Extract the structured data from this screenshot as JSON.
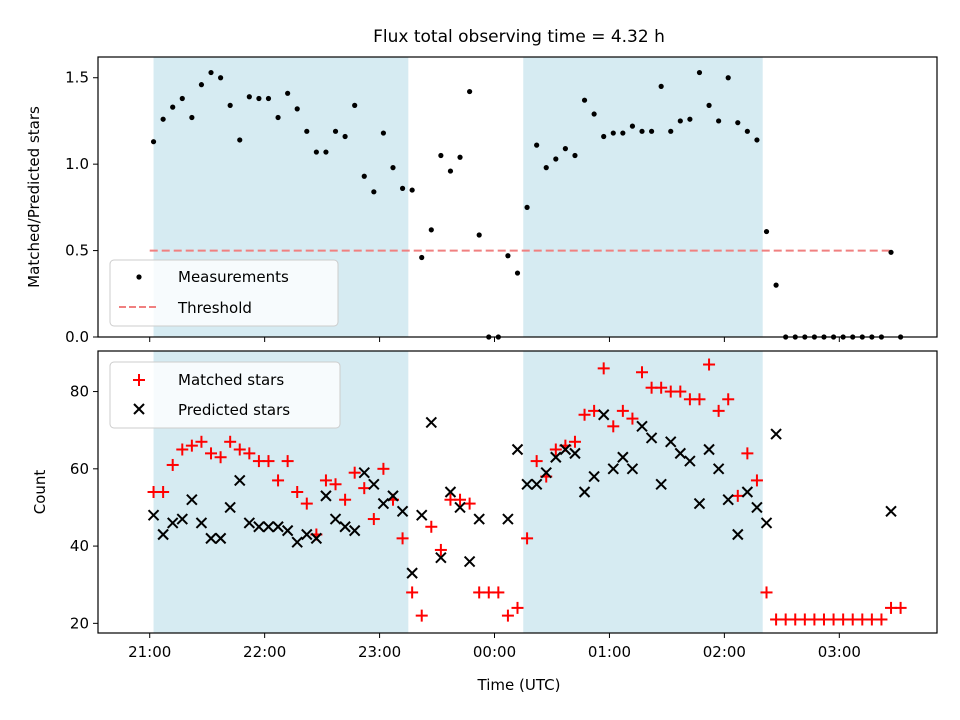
{
  "title": "Flux total observing time = 4.32 h",
  "colors": {
    "band": "#add8e6",
    "measurement": "#000000",
    "threshold": "#f08080",
    "matched": "#ff0000",
    "predicted": "#000000"
  },
  "chart_data": [
    {
      "type": "scatter",
      "panel": "top",
      "ylabel": "Matched/Predicted stars",
      "ylim": [
        0,
        1.62
      ],
      "xlim_hours": [
        20.55,
        27.85
      ],
      "yticks": [
        0.0,
        0.5,
        1.0,
        1.5
      ],
      "ytick_labels": [
        "0.0",
        "0.5",
        "1.0",
        "1.5"
      ],
      "bands": [
        [
          "21:02",
          "23:15"
        ],
        [
          "00:15",
          "02:20"
        ]
      ],
      "legend": {
        "position": "lower-left",
        "entries": [
          "Measurements",
          "Threshold"
        ]
      },
      "threshold": {
        "name": "Threshold",
        "value": 0.5,
        "x_range": [
          "21:00",
          "03:27"
        ],
        "style": "dashed"
      },
      "series": [
        {
          "name": "Measurements",
          "marker": "dot",
          "points": [
            [
              "21:02",
              1.13
            ],
            [
              "21:07",
              1.26
            ],
            [
              "21:12",
              1.33
            ],
            [
              "21:17",
              1.38
            ],
            [
              "21:22",
              1.27
            ],
            [
              "21:27",
              1.46
            ],
            [
              "21:32",
              1.53
            ],
            [
              "21:37",
              1.5
            ],
            [
              "21:42",
              1.34
            ],
            [
              "21:47",
              1.14
            ],
            [
              "21:52",
              1.39
            ],
            [
              "21:57",
              1.38
            ],
            [
              "22:02",
              1.38
            ],
            [
              "22:07",
              1.27
            ],
            [
              "22:12",
              1.41
            ],
            [
              "22:17",
              1.32
            ],
            [
              "22:22",
              1.19
            ],
            [
              "22:27",
              1.07
            ],
            [
              "22:32",
              1.07
            ],
            [
              "22:37",
              1.19
            ],
            [
              "22:42",
              1.16
            ],
            [
              "22:47",
              1.34
            ],
            [
              "22:52",
              0.93
            ],
            [
              "22:57",
              0.84
            ],
            [
              "23:02",
              1.18
            ],
            [
              "23:07",
              0.98
            ],
            [
              "23:12",
              0.86
            ],
            [
              "23:17",
              0.85
            ],
            [
              "23:22",
              0.46
            ],
            [
              "23:27",
              0.62
            ],
            [
              "23:32",
              1.05
            ],
            [
              "23:37",
              0.96
            ],
            [
              "23:42",
              1.04
            ],
            [
              "23:47",
              1.42
            ],
            [
              "23:52",
              0.59
            ],
            [
              "23:57",
              0.0
            ],
            [
              "00:02",
              0.0
            ],
            [
              "00:07",
              0.47
            ],
            [
              "00:12",
              0.37
            ],
            [
              "00:17",
              0.75
            ],
            [
              "00:22",
              1.11
            ],
            [
              "00:27",
              0.98
            ],
            [
              "00:32",
              1.03
            ],
            [
              "00:37",
              1.09
            ],
            [
              "00:42",
              1.05
            ],
            [
              "00:47",
              1.37
            ],
            [
              "00:52",
              1.29
            ],
            [
              "00:57",
              1.16
            ],
            [
              "01:02",
              1.18
            ],
            [
              "01:07",
              1.18
            ],
            [
              "01:12",
              1.22
            ],
            [
              "01:17",
              1.19
            ],
            [
              "01:22",
              1.19
            ],
            [
              "01:27",
              1.45
            ],
            [
              "01:32",
              1.19
            ],
            [
              "01:37",
              1.25
            ],
            [
              "01:42",
              1.26
            ],
            [
              "01:47",
              1.53
            ],
            [
              "01:52",
              1.34
            ],
            [
              "01:57",
              1.25
            ],
            [
              "02:02",
              1.5
            ],
            [
              "02:07",
              1.24
            ],
            [
              "02:12",
              1.19
            ],
            [
              "02:17",
              1.14
            ],
            [
              "02:22",
              0.61
            ],
            [
              "02:27",
              0.3
            ],
            [
              "02:32",
              0.0
            ],
            [
              "02:37",
              0.0
            ],
            [
              "02:42",
              0.0
            ],
            [
              "02:47",
              0.0
            ],
            [
              "02:52",
              0.0
            ],
            [
              "02:57",
              0.0
            ],
            [
              "03:02",
              0.0
            ],
            [
              "03:07",
              0.0
            ],
            [
              "03:12",
              0.0
            ],
            [
              "03:17",
              0.0
            ],
            [
              "03:22",
              0.0
            ],
            [
              "03:27",
              0.49
            ],
            [
              "03:32",
              0.0
            ]
          ]
        }
      ]
    },
    {
      "type": "scatter",
      "panel": "bottom",
      "ylabel": "Count",
      "xlabel": "Time (UTC)",
      "ylim": [
        17.5,
        90.5
      ],
      "xlim_hours": [
        20.55,
        27.85
      ],
      "yticks": [
        20,
        40,
        60,
        80
      ],
      "ytick_labels": [
        "20",
        "40",
        "60",
        "80"
      ],
      "xticks": [
        "21:00",
        "22:00",
        "23:00",
        "00:00",
        "01:00",
        "02:00",
        "03:00"
      ],
      "bands": [
        [
          "21:02",
          "23:15"
        ],
        [
          "00:15",
          "02:20"
        ]
      ],
      "legend": {
        "position": "top-left",
        "entries": [
          "Matched stars",
          "Predicted stars"
        ]
      },
      "series": [
        {
          "name": "Matched stars",
          "marker": "plus",
          "points": [
            [
              "21:02",
              54
            ],
            [
              "21:07",
              54
            ],
            [
              "21:12",
              61
            ],
            [
              "21:17",
              65
            ],
            [
              "21:22",
              66
            ],
            [
              "21:27",
              67
            ],
            [
              "21:32",
              64
            ],
            [
              "21:37",
              63
            ],
            [
              "21:42",
              67
            ],
            [
              "21:47",
              65
            ],
            [
              "21:52",
              64
            ],
            [
              "21:57",
              62
            ],
            [
              "22:02",
              62
            ],
            [
              "22:07",
              57
            ],
            [
              "22:12",
              62
            ],
            [
              "22:17",
              54
            ],
            [
              "22:22",
              51
            ],
            [
              "22:27",
              43
            ],
            [
              "22:32",
              57
            ],
            [
              "22:37",
              56
            ],
            [
              "22:42",
              52
            ],
            [
              "22:47",
              59
            ],
            [
              "22:52",
              55
            ],
            [
              "22:57",
              47
            ],
            [
              "23:02",
              60
            ],
            [
              "23:07",
              52
            ],
            [
              "23:12",
              42
            ],
            [
              "23:17",
              28
            ],
            [
              "23:22",
              22
            ],
            [
              "23:27",
              45
            ],
            [
              "23:32",
              39
            ],
            [
              "23:37",
              52
            ],
            [
              "23:42",
              52
            ],
            [
              "23:47",
              51
            ],
            [
              "23:52",
              28
            ],
            [
              "23:57",
              28
            ],
            [
              "00:02",
              28
            ],
            [
              "00:07",
              22
            ],
            [
              "00:12",
              24
            ],
            [
              "00:17",
              42
            ],
            [
              "00:22",
              62
            ],
            [
              "00:27",
              58
            ],
            [
              "00:32",
              65
            ],
            [
              "00:37",
              66
            ],
            [
              "00:42",
              67
            ],
            [
              "00:47",
              74
            ],
            [
              "00:52",
              75
            ],
            [
              "00:57",
              86
            ],
            [
              "01:02",
              71
            ],
            [
              "01:07",
              75
            ],
            [
              "01:12",
              73
            ],
            [
              "01:17",
              85
            ],
            [
              "01:22",
              81
            ],
            [
              "01:27",
              81
            ],
            [
              "01:32",
              80
            ],
            [
              "01:37",
              80
            ],
            [
              "01:42",
              78
            ],
            [
              "01:47",
              78
            ],
            [
              "01:52",
              87
            ],
            [
              "01:57",
              75
            ],
            [
              "02:02",
              78
            ],
            [
              "02:07",
              53
            ],
            [
              "02:12",
              64
            ],
            [
              "02:17",
              57
            ],
            [
              "02:22",
              28
            ],
            [
              "02:27",
              21
            ],
            [
              "02:32",
              21
            ],
            [
              "02:37",
              21
            ],
            [
              "02:42",
              21
            ],
            [
              "02:47",
              21
            ],
            [
              "02:52",
              21
            ],
            [
              "02:57",
              21
            ],
            [
              "03:02",
              21
            ],
            [
              "03:07",
              21
            ],
            [
              "03:12",
              21
            ],
            [
              "03:17",
              21
            ],
            [
              "03:22",
              21
            ],
            [
              "03:27",
              24
            ],
            [
              "03:32",
              24
            ]
          ]
        },
        {
          "name": "Predicted stars",
          "marker": "x",
          "points": [
            [
              "21:02",
              48
            ],
            [
              "21:07",
              43
            ],
            [
              "21:12",
              46
            ],
            [
              "21:17",
              47
            ],
            [
              "21:22",
              52
            ],
            [
              "21:27",
              46
            ],
            [
              "21:32",
              42
            ],
            [
              "21:37",
              42
            ],
            [
              "21:42",
              50
            ],
            [
              "21:47",
              57
            ],
            [
              "21:52",
              46
            ],
            [
              "21:57",
              45
            ],
            [
              "22:02",
              45
            ],
            [
              "22:07",
              45
            ],
            [
              "22:12",
              44
            ],
            [
              "22:17",
              41
            ],
            [
              "22:22",
              43
            ],
            [
              "22:27",
              42
            ],
            [
              "22:32",
              53
            ],
            [
              "22:37",
              47
            ],
            [
              "22:42",
              45
            ],
            [
              "22:47",
              44
            ],
            [
              "22:52",
              59
            ],
            [
              "22:57",
              56
            ],
            [
              "23:02",
              51
            ],
            [
              "23:07",
              53
            ],
            [
              "23:12",
              49
            ],
            [
              "23:17",
              33
            ],
            [
              "23:22",
              48
            ],
            [
              "23:27",
              72
            ],
            [
              "23:32",
              37
            ],
            [
              "23:37",
              54
            ],
            [
              "23:42",
              50
            ],
            [
              "23:47",
              36
            ],
            [
              "23:52",
              47
            ],
            [
              "00:07",
              47
            ],
            [
              "00:12",
              65
            ],
            [
              "00:17",
              56
            ],
            [
              "00:22",
              56
            ],
            [
              "00:27",
              59
            ],
            [
              "00:32",
              63
            ],
            [
              "00:37",
              65
            ],
            [
              "00:42",
              64
            ],
            [
              "00:47",
              54
            ],
            [
              "00:52",
              58
            ],
            [
              "00:57",
              74
            ],
            [
              "01:02",
              60
            ],
            [
              "01:07",
              63
            ],
            [
              "01:12",
              60
            ],
            [
              "01:17",
              71
            ],
            [
              "01:22",
              68
            ],
            [
              "01:27",
              56
            ],
            [
              "01:32",
              67
            ],
            [
              "01:37",
              64
            ],
            [
              "01:42",
              62
            ],
            [
              "01:47",
              51
            ],
            [
              "01:52",
              65
            ],
            [
              "01:57",
              60
            ],
            [
              "02:02",
              52
            ],
            [
              "02:07",
              43
            ],
            [
              "02:12",
              54
            ],
            [
              "02:17",
              50
            ],
            [
              "02:22",
              46
            ],
            [
              "02:27",
              69
            ],
            [
              "03:27",
              49
            ]
          ]
        }
      ]
    }
  ]
}
